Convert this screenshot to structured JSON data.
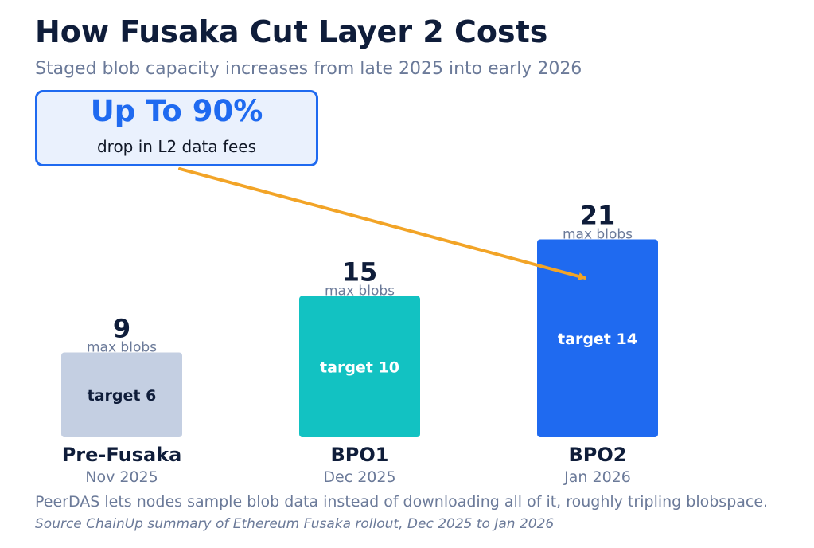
{
  "title": "How Fusaka Cut Layer 2 Costs",
  "subtitle": "Staged blob capacity increases from late 2025 into early 2026",
  "callout": {
    "headline": "Up To 90%",
    "text": "drop in L2 data fees"
  },
  "footnote": "PeerDAS lets nodes sample blob data instead of downloading all of it, roughly tripling blobspace.",
  "source": "Source ChainUp summary of Ethereum Fusaka rollout, Dec 2025 to Jan 2026",
  "colors": {
    "accent": "#1f6af0",
    "arrow": "#f2a427",
    "text_dark": "#0f1d3a",
    "muted": "#6b7a99"
  },
  "chart_data": {
    "type": "bar",
    "categories": [
      "Pre-Fusaka",
      "BPO1",
      "BPO2"
    ],
    "dates": [
      "Nov 2025",
      "Dec 2025",
      "Jan 2026"
    ],
    "values": [
      9,
      15,
      21
    ],
    "value_caption": "max blobs",
    "targets": [
      "target 6",
      "target 10",
      "target 14"
    ],
    "bar_colors": [
      "#c4cfe2",
      "#12c2c2",
      "#1f6af0"
    ],
    "target_text_colors": [
      "#0f1d3a",
      "#ffffff",
      "#ffffff"
    ],
    "grid": false
  }
}
